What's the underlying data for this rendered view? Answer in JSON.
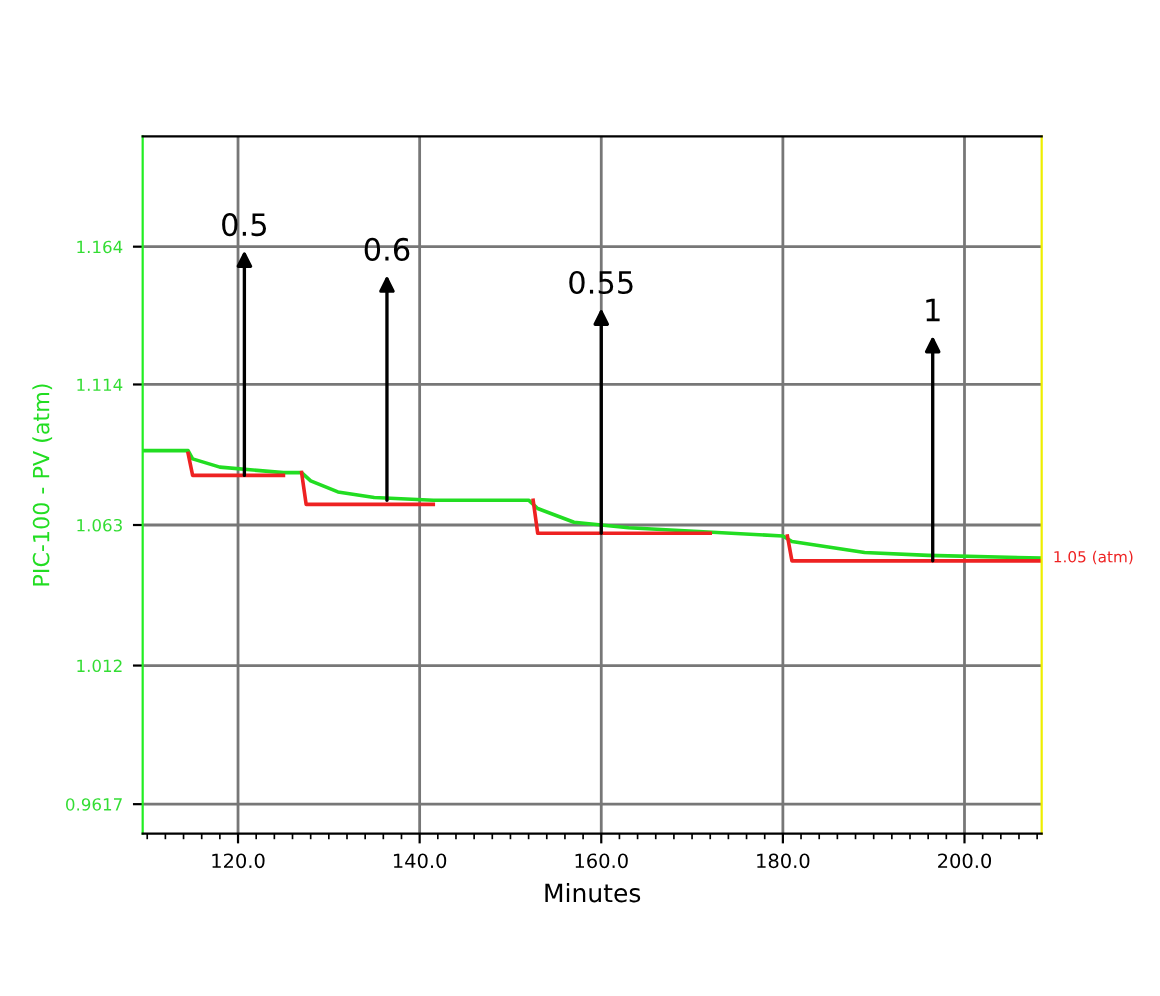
{
  "chart_data": {
    "type": "line",
    "xlabel": "Minutes",
    "ylabel": "PIC-100 - PV (atm)",
    "xlim": [
      109.5,
      208.5
    ],
    "ylim": [
      0.951,
      1.204
    ],
    "xticks": [
      {
        "value": 120,
        "label": "120.0"
      },
      {
        "value": 140,
        "label": "140.0"
      },
      {
        "value": 160,
        "label": "160.0"
      },
      {
        "value": 180,
        "label": "180.0"
      },
      {
        "value": 200,
        "label": "200.0"
      }
    ],
    "yticks": [
      0.9617,
      1.012,
      1.063,
      1.114,
      1.164
    ],
    "grid": true,
    "line_style": "solid",
    "series": [
      {
        "color": "#22dd22",
        "x": [
          109.5,
          114.5,
          115,
          118,
          125,
          127,
          128,
          131,
          135,
          141.5,
          152,
          153,
          157,
          163,
          180,
          181,
          185,
          189,
          196,
          208.5
        ],
        "values": [
          1.09,
          1.09,
          1.087,
          1.084,
          1.082,
          1.082,
          1.079,
          1.075,
          1.073,
          1.072,
          1.072,
          1.069,
          1.064,
          1.062,
          1.059,
          1.057,
          1.055,
          1.053,
          1.052,
          1.051
        ]
      },
      {
        "color": "#ee2222",
        "x": [
          114.5,
          115,
          125,
          126,
          127,
          127.5,
          141.5,
          147,
          152.5,
          153,
          172,
          176,
          180.5,
          181,
          208.5
        ],
        "values": [
          1.089,
          1.081,
          1.081,
          null,
          1.082,
          1.0705,
          1.0705,
          null,
          1.072,
          1.06,
          1.06,
          null,
          1.059,
          1.05,
          1.05
        ]
      }
    ],
    "annotations": [
      {
        "text": "0.5",
        "x": 120.7,
        "y": 1.081
      },
      {
        "text": "0.6",
        "x": 136.4,
        "y": 1.072
      },
      {
        "text": "0.55",
        "x": 160,
        "y": 1.06
      },
      {
        "text": "1",
        "x": 196.5,
        "y": 1.05
      },
      {
        "text": "1.05 (atm)",
        "x": 208.5,
        "y": 1.051
      }
    ]
  }
}
